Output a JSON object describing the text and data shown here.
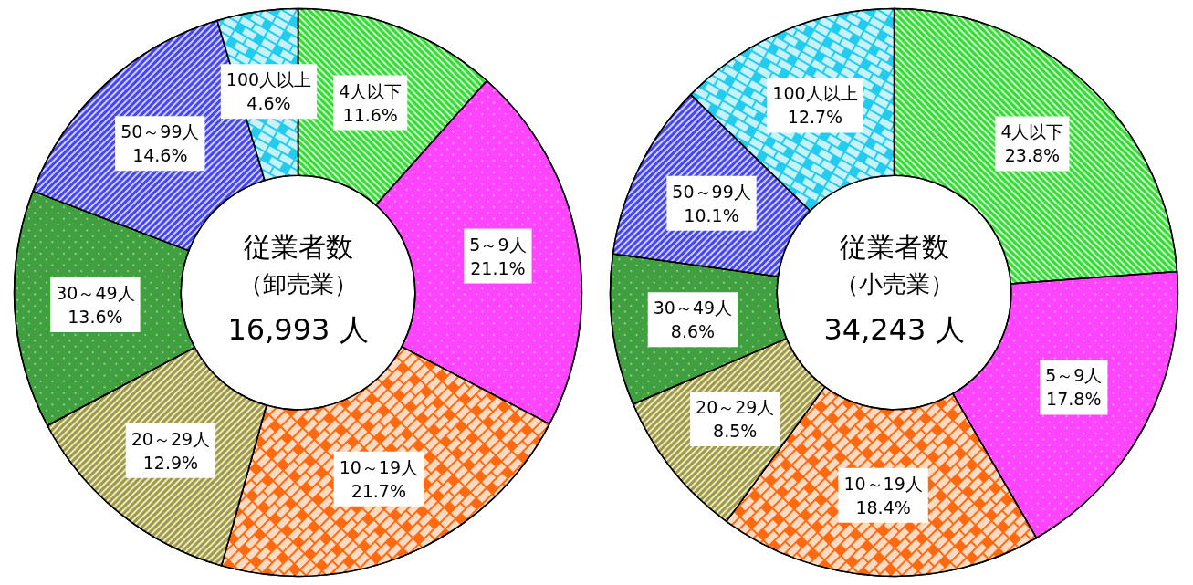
{
  "chart_data": [
    {
      "type": "donut",
      "title": "従業者数",
      "subtitle": "（卸売業）",
      "annotations": [
        "16,993 人"
      ],
      "categories": [
        "4人以下",
        "5～9人",
        "10～19人",
        "20～29人",
        "30～49人",
        "50～99人",
        "100人以上"
      ],
      "values": [
        11.6,
        21.1,
        21.7,
        12.9,
        13.6,
        14.6,
        4.6
      ],
      "value_labels": [
        "11.6%",
        "21.1%",
        "21.7%",
        "12.9%",
        "13.6%",
        "14.6%",
        "4.6%"
      ],
      "colors": [
        "#33dd33",
        "#ff44ff",
        "#ff6a10",
        "#a09a40",
        "#40a040",
        "#4444ff",
        "#22ccee"
      ]
    },
    {
      "type": "donut",
      "title": "従業者数",
      "subtitle": "（小売業）",
      "annotations": [
        "34,243 人"
      ],
      "categories": [
        "4人以下",
        "5～9人",
        "10～19人",
        "20～29人",
        "30～49人",
        "50～99人",
        "100人以上"
      ],
      "values": [
        23.8,
        17.8,
        18.4,
        8.5,
        8.6,
        10.1,
        12.7
      ],
      "value_labels": [
        "23.8%",
        "17.8%",
        "18.4%",
        "8.5%",
        "8.6%",
        "10.1%",
        "12.7%"
      ],
      "colors": [
        "#33dd33",
        "#ff44ff",
        "#ff6a10",
        "#a09a40",
        "#40a040",
        "#4444ff",
        "#22ccee"
      ]
    }
  ]
}
